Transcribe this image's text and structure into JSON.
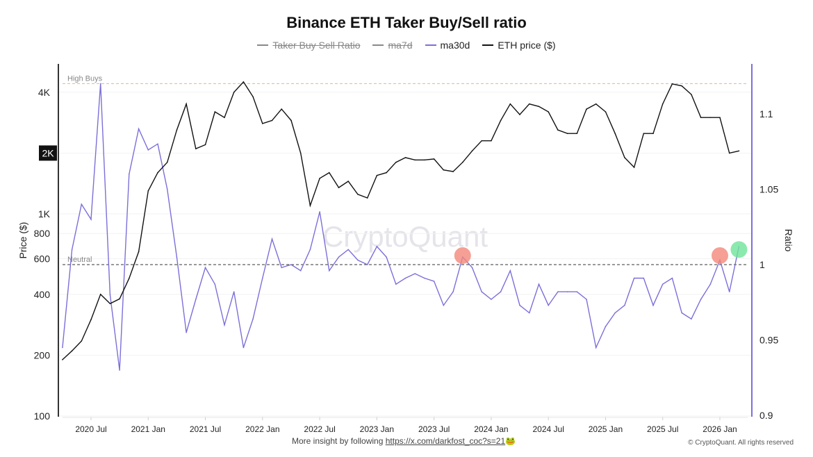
{
  "chart_data": {
    "type": "line",
    "title": "Binance ETH Taker Buy/Sell ratio",
    "legend": [
      {
        "name": "Taker Buy Sell Ratio",
        "color": "#888888",
        "hidden": true
      },
      {
        "name": "ma7d",
        "color": "#888888",
        "hidden": true
      },
      {
        "name": "ma30d",
        "color": "#7b6fd9",
        "hidden": false
      },
      {
        "name": "ETH price ($)",
        "color": "#111111",
        "hidden": false
      }
    ],
    "legend_placement": "top-center",
    "left_axis": {
      "label": "Price ($)",
      "scale": "log",
      "range": [
        100,
        5500
      ],
      "ticks": [
        "100",
        "200",
        "400",
        "600",
        "800",
        "1K",
        "2K",
        "4K"
      ],
      "tick_values": [
        100,
        200,
        400,
        600,
        800,
        1000,
        2000,
        4000
      ],
      "highlighted_tick": "2K"
    },
    "right_axis": {
      "label": "Ratio",
      "scale": "linear",
      "range": [
        0.9,
        1.13
      ],
      "ticks": [
        "0.9",
        "0.95",
        "1",
        "1.05",
        "1.1"
      ],
      "tick_values": [
        0.9,
        0.95,
        1,
        1.05,
        1.1
      ]
    },
    "x_axis": {
      "ticks": [
        "2020 Jul",
        "2021 Jan",
        "2021 Jul",
        "2022 Jan",
        "2022 Jul",
        "2023 Jan",
        "2023 Jul",
        "2024 Jan",
        "2024 Jul",
        "2025 Jan",
        "2025 Jul",
        "2026 Jan"
      ],
      "tick_dates": [
        "2020-07",
        "2021-01",
        "2021-07",
        "2022-01",
        "2022-07",
        "2023-01",
        "2023-07",
        "2024-01",
        "2024-07",
        "2025-01",
        "2025-07",
        "2026-01"
      ]
    },
    "reference_lines": [
      {
        "label": "High Buys",
        "value": 1.12,
        "color": "#e8b48a"
      },
      {
        "label": "Neutral",
        "value": 1.0,
        "color": "#333333"
      }
    ],
    "x": [
      "2020-04",
      "2020-05",
      "2020-06",
      "2020-07",
      "2020-08",
      "2020-09",
      "2020-10",
      "2020-11",
      "2020-12",
      "2021-01",
      "2021-02",
      "2021-03",
      "2021-04",
      "2021-05",
      "2021-06",
      "2021-07",
      "2021-08",
      "2021-09",
      "2021-10",
      "2021-11",
      "2021-12",
      "2022-01",
      "2022-02",
      "2022-03",
      "2022-04",
      "2022-05",
      "2022-06",
      "2022-07",
      "2022-08",
      "2022-09",
      "2022-10",
      "2022-11",
      "2022-12",
      "2023-01",
      "2023-02",
      "2023-03",
      "2023-04",
      "2023-05",
      "2023-06",
      "2023-07",
      "2023-08",
      "2023-09",
      "2023-10",
      "2023-11",
      "2023-12",
      "2024-01",
      "2024-02",
      "2024-03",
      "2024-04",
      "2024-05",
      "2024-06",
      "2024-07",
      "2024-08",
      "2024-09",
      "2024-10",
      "2024-11",
      "2024-12",
      "2025-01",
      "2025-02",
      "2025-03",
      "2025-04",
      "2025-05",
      "2025-06",
      "2025-07",
      "2025-08",
      "2025-09",
      "2025-10",
      "2025-11",
      "2025-12",
      "2026-01",
      "2026-02",
      "2026-03"
    ],
    "series": [
      {
        "name": "ETH price ($)",
        "axis": "left",
        "values": [
          190,
          210,
          235,
          300,
          400,
          360,
          380,
          480,
          650,
          1300,
          1600,
          1800,
          2600,
          3500,
          2100,
          2200,
          3200,
          3000,
          4000,
          4500,
          3800,
          2800,
          2900,
          3300,
          2900,
          2000,
          1100,
          1500,
          1600,
          1350,
          1450,
          1250,
          1200,
          1550,
          1600,
          1800,
          1900,
          1850,
          1850,
          1870,
          1650,
          1620,
          1800,
          2050,
          2300,
          2300,
          2900,
          3500,
          3100,
          3500,
          3400,
          3200,
          2600,
          2500,
          2500,
          3300,
          3500,
          3200,
          2500,
          1900,
          1700,
          2500,
          2500,
          3500,
          4400,
          4300,
          3900,
          3000,
          3000,
          3000,
          2000,
          2050
        ]
      },
      {
        "name": "ma30d",
        "axis": "right",
        "values": [
          0.945,
          1.01,
          1.04,
          1.03,
          1.12,
          0.98,
          0.93,
          1.06,
          1.09,
          1.076,
          1.08,
          1.05,
          1.005,
          0.955,
          0.977,
          0.998,
          0.987,
          0.96,
          0.982,
          0.945,
          0.964,
          0.991,
          1.017,
          0.998,
          1.0,
          0.996,
          1.01,
          1.035,
          0.996,
          1.005,
          1.01,
          1.003,
          1.0,
          1.012,
          1.005,
          0.987,
          0.991,
          0.994,
          0.991,
          0.989,
          0.973,
          0.982,
          1.005,
          0.998,
          0.982,
          0.977,
          0.982,
          0.996,
          0.973,
          0.968,
          0.987,
          0.973,
          0.982,
          0.982,
          0.982,
          0.977,
          0.945,
          0.959,
          0.968,
          0.973,
          0.991,
          0.991,
          0.973,
          0.987,
          0.991,
          0.968,
          0.964,
          0.977,
          0.987,
          1.003,
          0.982,
          1.012
        ]
      }
    ],
    "markers": [
      {
        "date": "2023-10",
        "value": 1.006,
        "color": "#f4877a"
      },
      {
        "date": "2026-01",
        "value": 1.006,
        "color": "#f4877a"
      },
      {
        "date": "2026-03",
        "value": 1.01,
        "color": "#6fe39a"
      }
    ],
    "watermark": "CryptoQuant",
    "grid": true
  },
  "footer": {
    "text": "More insight by following ",
    "link": "https://x.com/darkfost_coc?s=21",
    "emoji": "🐸",
    "copyright": "© CryptoQuant. All rights reserved"
  }
}
